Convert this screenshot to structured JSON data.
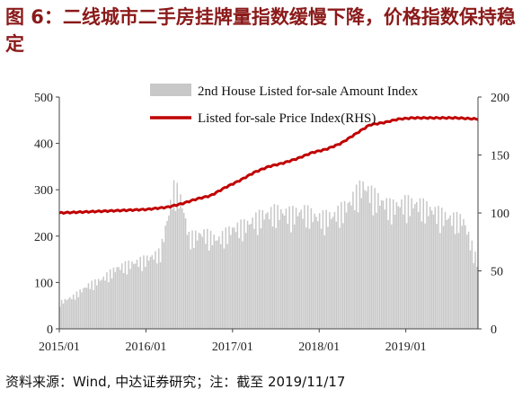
{
  "title": "图 6：二线城市二手房挂牌量指数缓慢下降，价格指数保持稳定",
  "source": "资料来源：Wind, 中达证券研究；注：截至 2019/11/17",
  "colors": {
    "title": "#8b1a1a",
    "bar": "#c8c8c8",
    "line": "#c00000",
    "axis": "#444444"
  },
  "chart_data": {
    "type": "bar+line",
    "x_range": [
      "2015-01",
      "2019-11"
    ],
    "x_tick_labels": [
      "2015/01",
      "2016/01",
      "2017/01",
      "2018/01",
      "2019/01"
    ],
    "y_left": {
      "ylim": [
        0,
        500
      ],
      "ticks": [
        0,
        100,
        200,
        300,
        400,
        500
      ]
    },
    "y_right": {
      "ylim": [
        0,
        200
      ],
      "ticks": [
        0,
        50,
        100,
        150,
        200
      ]
    },
    "legend_position": "top-right",
    "series": [
      {
        "name": "2nd House Listed for-sale Amount Index",
        "type": "bar",
        "axis": "left",
        "x_months_since_2015_01": [
          0,
          2,
          4,
          6,
          8,
          10,
          12,
          14,
          16,
          17,
          18,
          20,
          22,
          24,
          26,
          28,
          30,
          32,
          34,
          36,
          38,
          40,
          42,
          44,
          46,
          48,
          50,
          52,
          54,
          56,
          58
        ],
        "values": [
          60,
          75,
          100,
          115,
          140,
          150,
          160,
          175,
          330,
          290,
          210,
          220,
          205,
          230,
          240,
          260,
          270,
          265,
          270,
          255,
          260,
          285,
          330,
          300,
          280,
          290,
          285,
          270,
          255,
          250,
          150
        ]
      },
      {
        "name": "Listed for-sale Price Index(RHS)",
        "type": "line",
        "axis": "right",
        "x_months_since_2015_01": [
          0,
          4,
          8,
          12,
          15,
          17,
          19,
          21,
          23,
          25,
          27,
          29,
          31,
          33,
          35,
          37,
          39,
          41,
          43,
          45,
          47,
          49,
          51,
          53,
          55,
          58
        ],
        "values": [
          100,
          101,
          102,
          103,
          105,
          108,
          112,
          115,
          122,
          128,
          135,
          140,
          143,
          147,
          152,
          155,
          160,
          168,
          176,
          178,
          181,
          182,
          182,
          182,
          182,
          181
        ]
      }
    ]
  }
}
